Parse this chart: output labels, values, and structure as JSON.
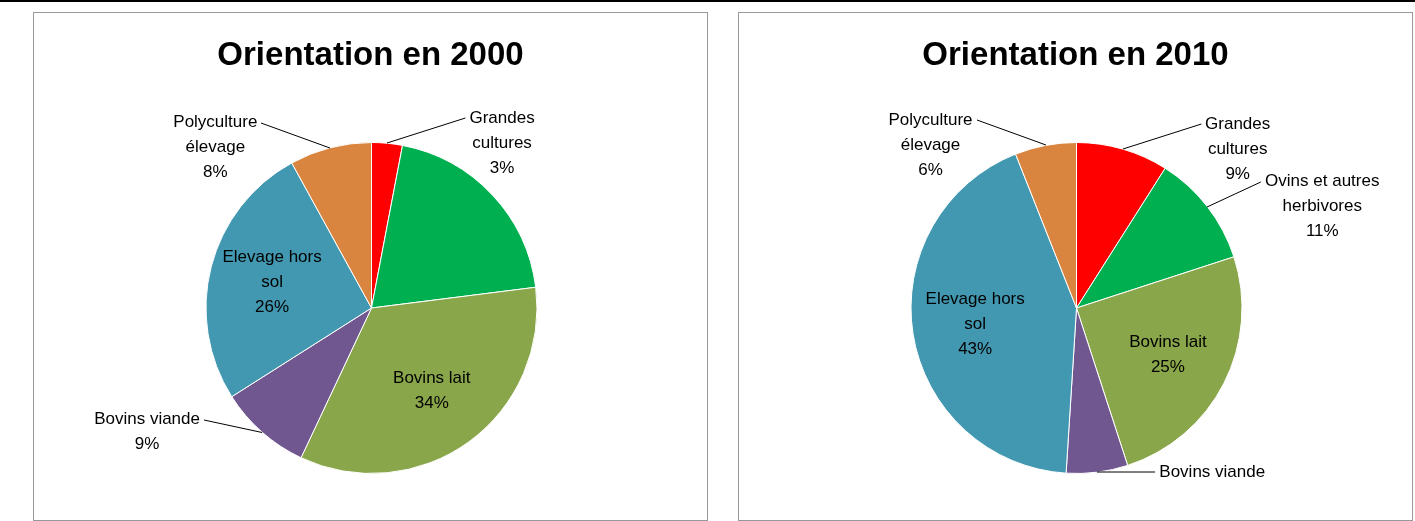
{
  "chart_data": [
    {
      "type": "pie",
      "title": "Orientation en 2000",
      "categories": [
        "Grandes cultures",
        null,
        "Bovins lait",
        "Bovins viande",
        "Elevage hors sol",
        "Polyculture élevage"
      ],
      "values": [
        3,
        20,
        34,
        9,
        26,
        8
      ],
      "value_labels": [
        "3%",
        null,
        "34%",
        "9%",
        "26%",
        "8%"
      ],
      "colors": [
        "#ff0000",
        "#00b050",
        "#8aa64a",
        "#70578f",
        "#4298b0",
        "#d9853f"
      ],
      "legend": false
    },
    {
      "type": "pie",
      "title": "Orientation en 2010",
      "categories": [
        "Grandes cultures",
        "Ovins et autres herbivores",
        "Bovins lait",
        "Bovins viande",
        "Elevage hors sol",
        "Polyculture élevage"
      ],
      "values": [
        9,
        11,
        25,
        6,
        43,
        6
      ],
      "value_labels": [
        "9%",
        "11%",
        "25%",
        null,
        "43%",
        "6%"
      ],
      "colors": [
        "#ff0000",
        "#00b050",
        "#8aa64a",
        "#70578f",
        "#4298b0",
        "#d9853f"
      ],
      "legend": false
    }
  ]
}
